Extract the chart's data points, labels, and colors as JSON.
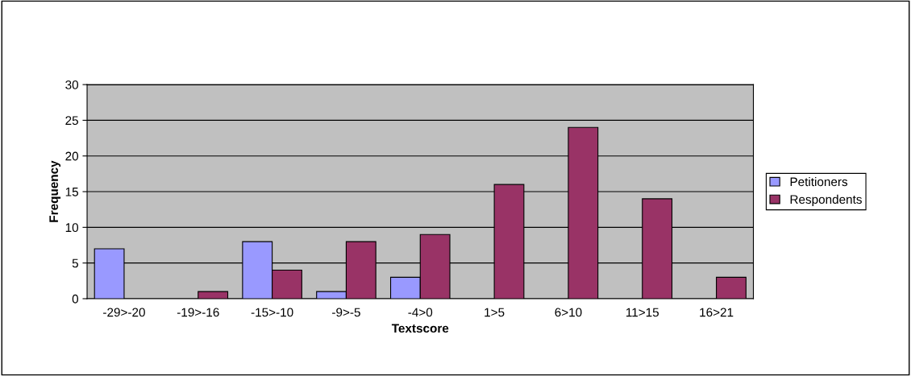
{
  "chart_data": {
    "type": "bar",
    "xlabel": "Textscore",
    "ylabel": "Frequency",
    "categories": [
      "-29>-20",
      "-19>-16",
      "-15>-10",
      "-9>-5",
      "-4>0",
      "1>5",
      "6>10",
      "11>15",
      "16>21"
    ],
    "series": [
      {
        "name": "Petitioners",
        "color": "#9999ff",
        "values": [
          7,
          null,
          8,
          1,
          3,
          null,
          null,
          null,
          null
        ]
      },
      {
        "name": "Respondents",
        "color": "#993366",
        "values": [
          null,
          1,
          4,
          8,
          9,
          16,
          24,
          14,
          3
        ]
      }
    ],
    "ylim": [
      0,
      30
    ],
    "yticks": [
      0,
      5,
      10,
      15,
      20,
      25,
      30
    ],
    "grid": "y",
    "legend": "right"
  }
}
